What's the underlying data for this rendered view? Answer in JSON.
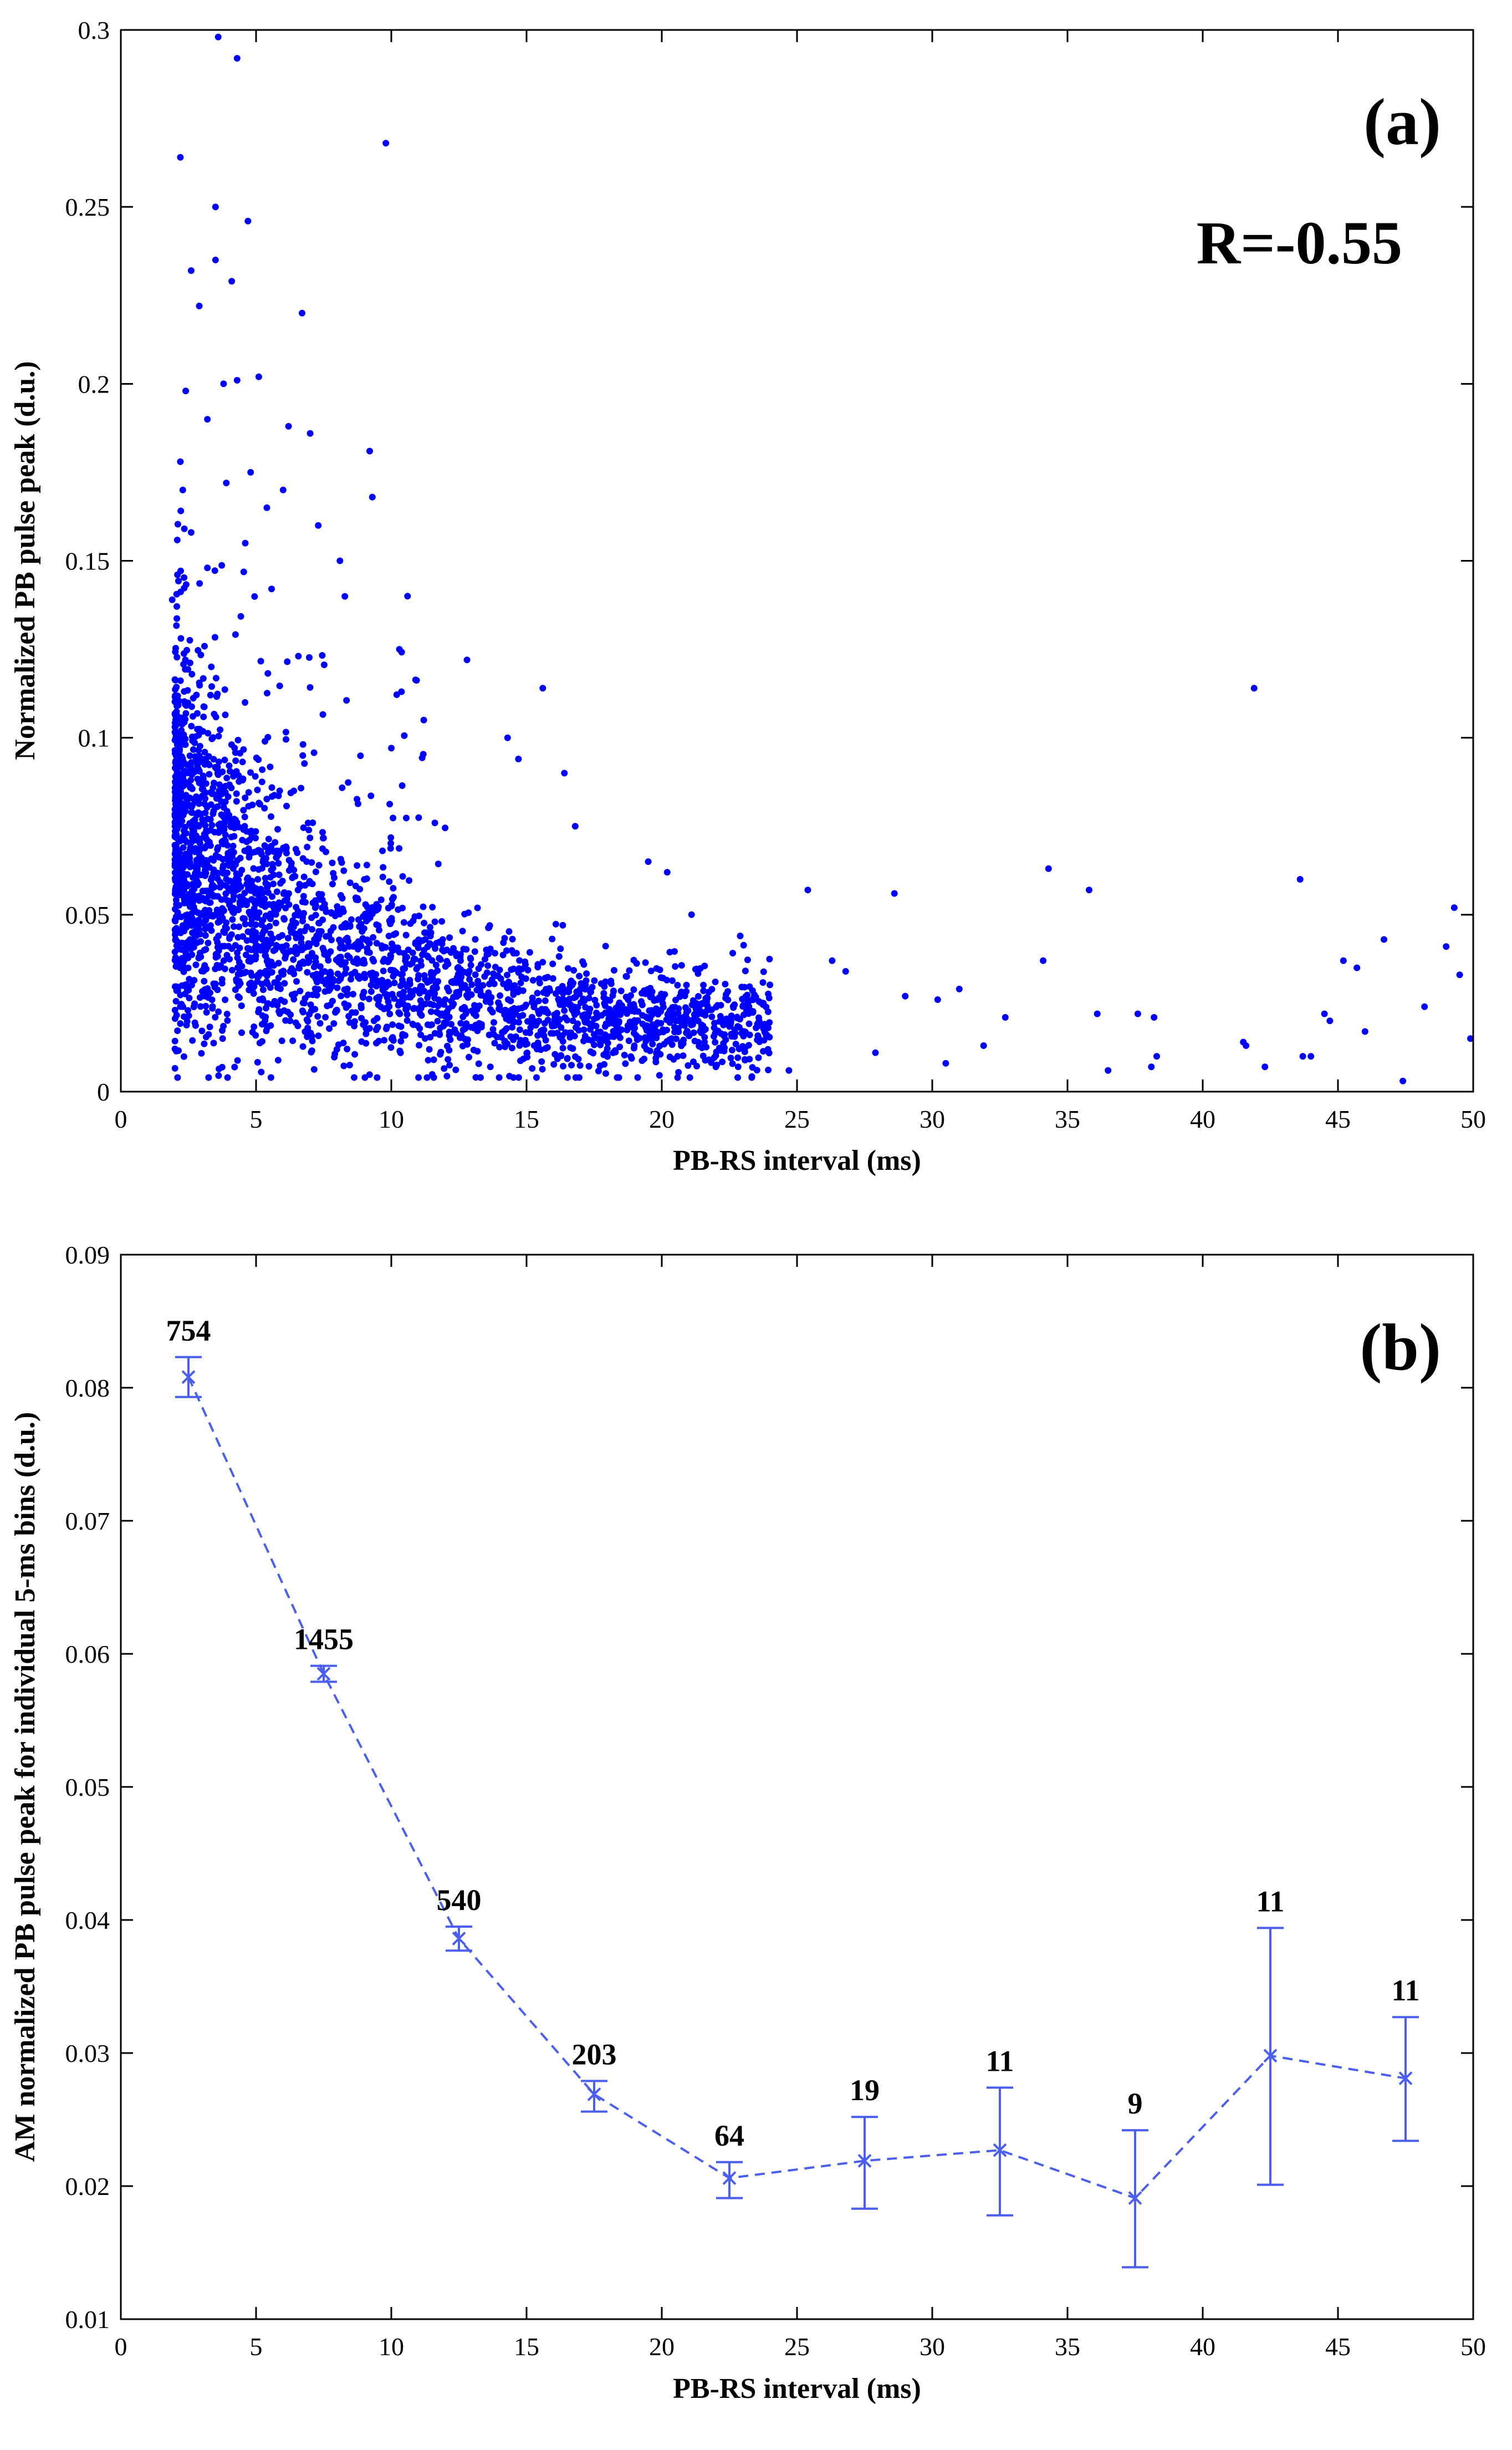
{
  "chart_data": [
    {
      "type": "scatter",
      "panel_label": "(a)",
      "annotation": "R=-0.55",
      "xlabel": "PB-RS interval (ms)",
      "ylabel": "Normalized PB pulse peak (d.u.)",
      "xlim": [
        0,
        50
      ],
      "ylim": [
        0,
        0.3
      ],
      "xticks": [
        0,
        5,
        10,
        15,
        20,
        25,
        30,
        35,
        40,
        45,
        50
      ],
      "yticks": [
        0,
        0.05,
        0.1,
        0.15,
        0.2,
        0.25,
        0.3
      ],
      "xtick_labels": [
        "0",
        "5",
        "10",
        "15",
        "20",
        "25",
        "30",
        "35",
        "40",
        "45",
        "50"
      ],
      "ytick_labels": [
        "0",
        "0.05",
        "0.1",
        "0.15",
        "0.2",
        "0.25",
        "0.3"
      ],
      "marker_color": "#0000ff",
      "points": [
        [
          3.6,
          0.298
        ],
        [
          4.3,
          0.292
        ],
        [
          2.2,
          0.264
        ],
        [
          9.8,
          0.268
        ],
        [
          3.5,
          0.25
        ],
        [
          4.7,
          0.246
        ],
        [
          3.5,
          0.235
        ],
        [
          2.6,
          0.232
        ],
        [
          4.1,
          0.229
        ],
        [
          2.9,
          0.222
        ],
        [
          6.7,
          0.22
        ],
        [
          3.8,
          0.2
        ],
        [
          5.1,
          0.202
        ],
        [
          4.3,
          0.201
        ],
        [
          2.4,
          0.198
        ],
        [
          3.2,
          0.19
        ],
        [
          6.2,
          0.188
        ],
        [
          7.0,
          0.186
        ],
        [
          9.2,
          0.181
        ],
        [
          2.2,
          0.178
        ],
        [
          4.8,
          0.175
        ],
        [
          3.9,
          0.172
        ],
        [
          6.0,
          0.17
        ],
        [
          5.4,
          0.165
        ],
        [
          9.3,
          0.168
        ],
        [
          7.3,
          0.16
        ],
        [
          2.6,
          0.158
        ],
        [
          4.6,
          0.155
        ],
        [
          8.1,
          0.15
        ],
        [
          3.2,
          0.148
        ],
        [
          10.6,
          0.14
        ],
        [
          1.9,
          0.139
        ],
        [
          12.8,
          0.122
        ],
        [
          15.6,
          0.114
        ],
        [
          41.9,
          0.114
        ],
        [
          10.3,
          0.125
        ],
        [
          11.2,
          0.105
        ],
        [
          14.3,
          0.1
        ],
        [
          14.7,
          0.094
        ],
        [
          16.4,
          0.09
        ],
        [
          16.8,
          0.075
        ],
        [
          19.5,
          0.065
        ],
        [
          20.2,
          0.062
        ],
        [
          34.3,
          0.063
        ],
        [
          43.6,
          0.06
        ],
        [
          25.4,
          0.057
        ],
        [
          28.6,
          0.056
        ],
        [
          35.8,
          0.057
        ],
        [
          49.3,
          0.052
        ],
        [
          21.1,
          0.05
        ],
        [
          22.9,
          0.044
        ],
        [
          26.3,
          0.037
        ],
        [
          26.8,
          0.034
        ],
        [
          29.0,
          0.027
        ],
        [
          30.2,
          0.026
        ],
        [
          31.0,
          0.029
        ],
        [
          32.7,
          0.021
        ],
        [
          34.1,
          0.037
        ],
        [
          36.1,
          0.022
        ],
        [
          37.6,
          0.022
        ],
        [
          38.2,
          0.021
        ],
        [
          38.3,
          0.01
        ],
        [
          38.1,
          0.007
        ],
        [
          36.5,
          0.006
        ],
        [
          41.5,
          0.014
        ],
        [
          41.6,
          0.013
        ],
        [
          42.3,
          0.007
        ],
        [
          43.7,
          0.01
        ],
        [
          44.0,
          0.01
        ],
        [
          44.7,
          0.02
        ],
        [
          44.5,
          0.022
        ],
        [
          45.2,
          0.037
        ],
        [
          45.7,
          0.035
        ],
        [
          46.0,
          0.017
        ],
        [
          46.7,
          0.043
        ],
        [
          47.4,
          0.003
        ],
        [
          48.2,
          0.024
        ],
        [
          49.0,
          0.041
        ],
        [
          49.5,
          0.033
        ],
        [
          49.9,
          0.015
        ],
        [
          27.9,
          0.011
        ],
        [
          30.5,
          0.008
        ],
        [
          31.9,
          0.013
        ],
        [
          24.7,
          0.006
        ],
        [
          22.0,
          0.007
        ]
      ],
      "note": "Dense cluster of ~3000 points: x mostly 2-20 ms, y mostly 0.005-0.12; density decreasing with x"
    },
    {
      "type": "line",
      "panel_label": "(b)",
      "xlabel": "PB-RS interval (ms)",
      "ylabel": "AM normalized PB pulse peak for individual 5-ms bins (d.u.)",
      "xlim": [
        0,
        50
      ],
      "ylim": [
        0.01,
        0.09
      ],
      "xticks": [
        0,
        5,
        10,
        15,
        20,
        25,
        30,
        35,
        40,
        45,
        50
      ],
      "yticks": [
        0.01,
        0.02,
        0.03,
        0.04,
        0.05,
        0.06,
        0.07,
        0.08,
        0.09
      ],
      "xtick_labels": [
        "0",
        "5",
        "10",
        "15",
        "20",
        "25",
        "30",
        "35",
        "40",
        "45",
        "50"
      ],
      "ytick_labels": [
        "0.01",
        "0.02",
        "0.03",
        "0.04",
        "0.05",
        "0.06",
        "0.07",
        "0.08",
        "0.09"
      ],
      "line_style": "dashed",
      "marker": "x",
      "color": "#4a5ef0",
      "x": [
        2.5,
        7.5,
        12.5,
        17.5,
        22.5,
        27.5,
        32.5,
        37.5,
        42.5,
        47.5
      ],
      "y": [
        0.0808,
        0.0585,
        0.0386,
        0.0269,
        0.0206,
        0.0219,
        0.0227,
        0.0191,
        0.0298,
        0.0281
      ],
      "err_low": [
        0.0793,
        0.0579,
        0.0377,
        0.0256,
        0.0191,
        0.0183,
        0.0178,
        0.0139,
        0.0201,
        0.0234
      ],
      "err_high": [
        0.0823,
        0.0591,
        0.0395,
        0.0279,
        0.0218,
        0.0252,
        0.0274,
        0.0242,
        0.0394,
        0.0327
      ],
      "counts": [
        "754",
        "1455",
        "540",
        "203",
        "64",
        "19",
        "11",
        "9",
        "11",
        "11"
      ]
    }
  ]
}
